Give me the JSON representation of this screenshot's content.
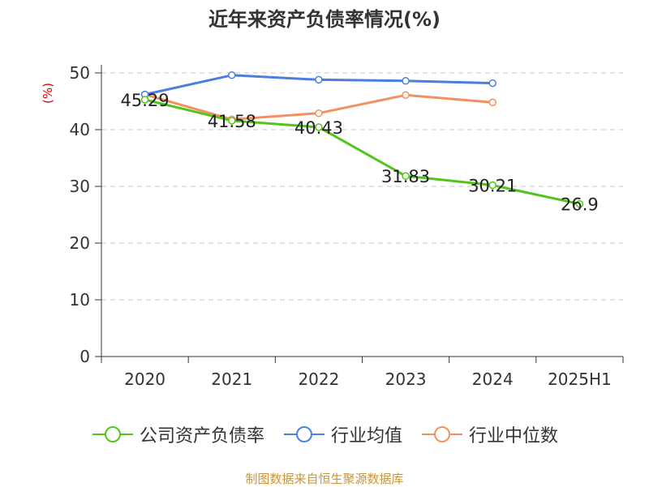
{
  "title": "近年来资产负债率情况(%)",
  "ylabel": "(%)",
  "source": "制图数据来自恒生聚源数据库",
  "chart_data": {
    "type": "line",
    "title": "近年来资产负债率情况(%)",
    "ylabel": "(%)",
    "xlabel": "",
    "categories": [
      "2020",
      "2021",
      "2022",
      "2023",
      "2024",
      "2025H1"
    ],
    "ylim": [
      0,
      50
    ],
    "yticks": [
      "0",
      "10",
      "20",
      "30",
      "40",
      "50"
    ],
    "grid": true,
    "legend_position": "bottom",
    "series": [
      {
        "name": "公司资产负债率",
        "color": "#52c41a",
        "values": [
          45.29,
          41.58,
          40.43,
          31.83,
          30.21,
          26.9
        ],
        "labels": [
          "45.29",
          "41.58",
          "40.43",
          "31.83",
          "30.21",
          "26.9"
        ]
      },
      {
        "name": "行业均值",
        "color": "#4a7fdc",
        "values": [
          46.2,
          49.6,
          48.8,
          48.6,
          48.2,
          null
        ]
      },
      {
        "name": "行业中位数",
        "color": "#f3905f",
        "values": [
          46.2,
          41.8,
          42.9,
          46.1,
          44.8,
          null
        ]
      }
    ]
  }
}
